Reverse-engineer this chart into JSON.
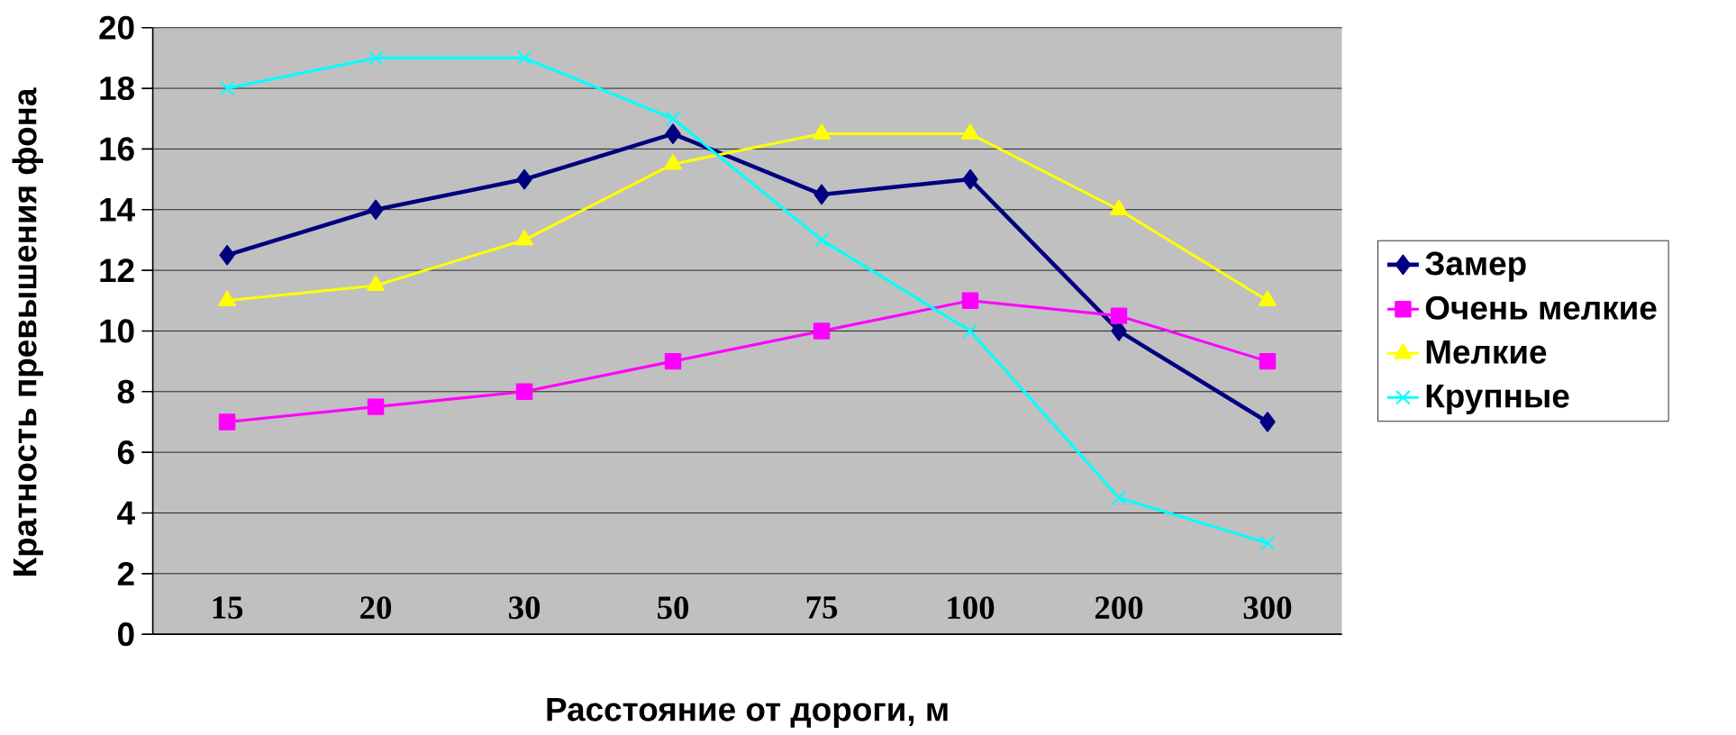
{
  "chart_data": {
    "type": "line",
    "xlabel": "Расстояние от дороги, м",
    "ylabel": "Кратность превышения фона",
    "categories": [
      "15",
      "20",
      "30",
      "50",
      "75",
      "100",
      "200",
      "300"
    ],
    "series": [
      {
        "name": "Замер",
        "color": "#000080",
        "marker": "diamond",
        "values": [
          12.5,
          14,
          15,
          16.5,
          14.5,
          15,
          10,
          7
        ]
      },
      {
        "name": "Очень мелкие",
        "color": "#ff00ff",
        "marker": "square",
        "values": [
          7,
          7.5,
          8,
          9,
          10,
          11,
          10.5,
          9
        ]
      },
      {
        "name": "Мелкие",
        "color": "#ffff00",
        "marker": "triangle",
        "values": [
          11,
          11.5,
          13,
          15.5,
          16.5,
          16.5,
          14,
          11
        ]
      },
      {
        "name": "Крупные",
        "color": "#00ffff",
        "marker": "cross",
        "values": [
          18,
          19,
          19,
          17,
          13,
          10,
          4.5,
          3
        ]
      }
    ],
    "ylim": [
      0,
      20
    ],
    "yticks": [
      0,
      2,
      4,
      6,
      8,
      10,
      12,
      14,
      16,
      18,
      20
    ],
    "grid": "y",
    "legend": "right"
  }
}
